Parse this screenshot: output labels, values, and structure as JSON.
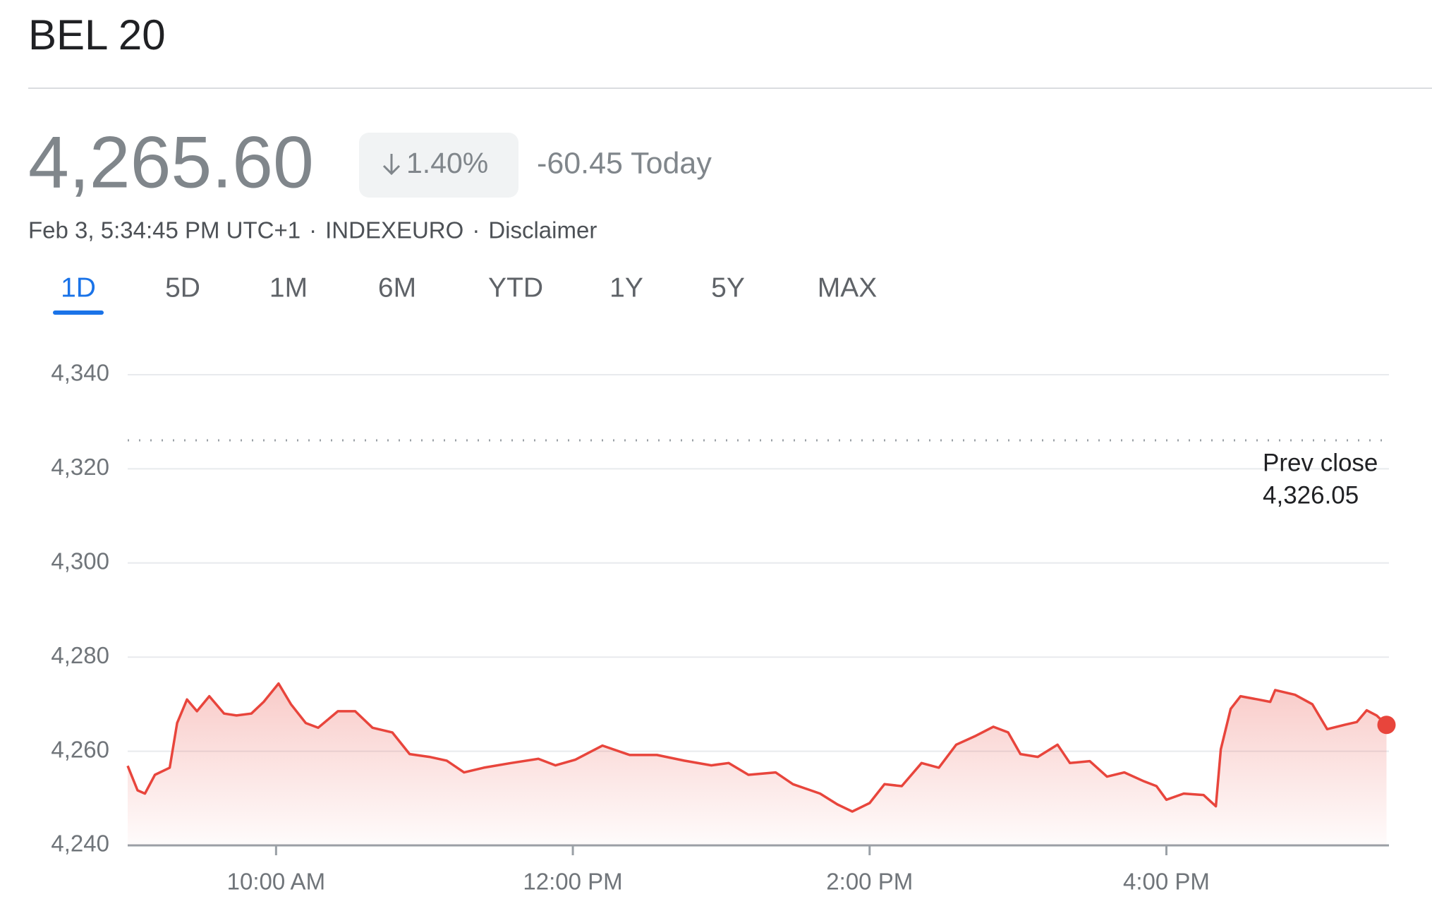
{
  "header": {
    "title": "BEL 20",
    "price": "4,265.60",
    "change_percent": "1.40%",
    "change_today": "-60.45 Today",
    "meta": [
      "Feb 3, 5:34:45 PM UTC+1",
      "·",
      "INDEXEURO",
      "·",
      "Disclaimer"
    ]
  },
  "tabs": {
    "items": [
      "1D",
      "5D",
      "1M",
      "6M",
      "YTD",
      "1Y",
      "5Y",
      "MAX"
    ],
    "active": 0
  },
  "chart_data": {
    "type": "line",
    "x": [
      540,
      544,
      547,
      551,
      557,
      560,
      564,
      568,
      573,
      579,
      584,
      590,
      595,
      601,
      606,
      612,
      617,
      625,
      632,
      639,
      647,
      654,
      662,
      669,
      676,
      684,
      695,
      706,
      713,
      721,
      732,
      743,
      754,
      765,
      776,
      783,
      791,
      802,
      809,
      820,
      827,
      833,
      840,
      846,
      853,
      861,
      868,
      875,
      883,
      890,
      896,
      901,
      908,
      916,
      921,
      929,
      936,
      943,
      951,
      956,
      960,
      967,
      975,
      980,
      982,
      986,
      990,
      997,
      1002,
      1004,
      1012,
      1019,
      1025,
      1032,
      1037,
      1041,
      1045,
      1049
    ],
    "series": [
      {
        "name": "BEL 20",
        "color": "#e8453c",
        "values": [
          4256.9,
          4251.7,
          4251.0,
          4255.0,
          4256.5,
          4266.0,
          4271.0,
          4268.5,
          4271.7,
          4268.0,
          4267.6,
          4268.0,
          4270.5,
          4274.4,
          4270.0,
          4266.0,
          4265.0,
          4268.5,
          4268.5,
          4265.0,
          4264.0,
          4259.4,
          4258.8,
          4258.0,
          4255.5,
          4256.5,
          4257.5,
          4258.4,
          4257.0,
          4258.2,
          4261.2,
          4259.2,
          4259.2,
          4258.0,
          4257.0,
          4257.5,
          4255.0,
          4255.5,
          4253.0,
          4251.0,
          4248.7,
          4247.2,
          4249.0,
          4253.0,
          4252.6,
          4257.5,
          4256.5,
          4261.4,
          4263.3,
          4265.2,
          4264.0,
          4259.4,
          4258.8,
          4261.4,
          4257.5,
          4257.9,
          4254.6,
          4255.5,
          4253.6,
          4252.6,
          4249.7,
          4251.0,
          4250.7,
          4248.3,
          4260.4,
          4269.0,
          4271.7,
          4271.0,
          4270.5,
          4273.0,
          4272.0,
          4270.0,
          4264.7,
          4265.6,
          4266.2,
          4268.7,
          4267.6,
          4265.6
        ]
      }
    ],
    "xlim": [
      540,
      1050
    ],
    "xticks": [
      {
        "value": 600,
        "label": "10:00 AM"
      },
      {
        "value": 720,
        "label": "12:00 PM"
      },
      {
        "value": 840,
        "label": "2:00 PM"
      },
      {
        "value": 960,
        "label": "4:00 PM"
      }
    ],
    "ylim": [
      4240,
      4340
    ],
    "yticks": [
      {
        "value": 4240,
        "label": "4,240"
      },
      {
        "value": 4260,
        "label": "4,260"
      },
      {
        "value": 4280,
        "label": "4,280"
      },
      {
        "value": 4300,
        "label": "4,300"
      },
      {
        "value": 4320,
        "label": "4,320"
      },
      {
        "value": 4340,
        "label": "4,340"
      }
    ],
    "grid": true,
    "prev_close": {
      "label": "Prev close",
      "value": 4326.05,
      "value_label": "4,326.05"
    }
  }
}
